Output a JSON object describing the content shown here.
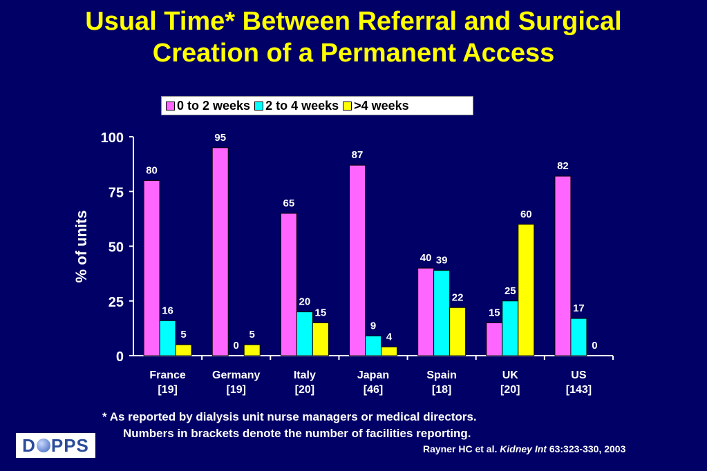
{
  "slide": {
    "title_line1": "Usual Time* Between Referral and Surgical",
    "title_line2": "Creation of a Permanent Access",
    "footnote_line1": "* As reported by dialysis unit nurse managers or medical directors.",
    "footnote_line2": "Numbers in brackets denote the number of facilities reporting.",
    "citation_authors": "Rayner HC et al. ",
    "citation_journal": "Kidney Int",
    "citation_rest": " 63:323-330, 2003",
    "logo_left": "D",
    "logo_right": "PPS"
  },
  "colors": {
    "background": "#000066",
    "title": "#FFFF00"
  },
  "chart_data": {
    "type": "bar",
    "ylabel": "% of units",
    "ylim": [
      0,
      100
    ],
    "yticks": [
      "0",
      "25",
      "50",
      "75",
      "100"
    ],
    "categories": [
      "France",
      "Germany",
      "Italy",
      "Japan",
      "Spain",
      "UK",
      "US"
    ],
    "category_counts": [
      "[19]",
      "[19]",
      "[20]",
      "[46]",
      "[18]",
      "[20]",
      "[143]"
    ],
    "series": [
      {
        "name": "0 to 2 weeks",
        "color": "#FF66FF",
        "values": [
          80,
          95,
          65,
          87,
          40,
          15,
          82
        ]
      },
      {
        "name": "2 to 4 weeks",
        "color": "#00FFFF",
        "values": [
          16,
          0,
          20,
          9,
          39,
          25,
          17
        ]
      },
      {
        "name": ">4 weeks",
        "color": "#FFFF00",
        "values": [
          5,
          5,
          15,
          4,
          22,
          60,
          0
        ]
      }
    ],
    "grid": false,
    "legend_position": "top"
  }
}
